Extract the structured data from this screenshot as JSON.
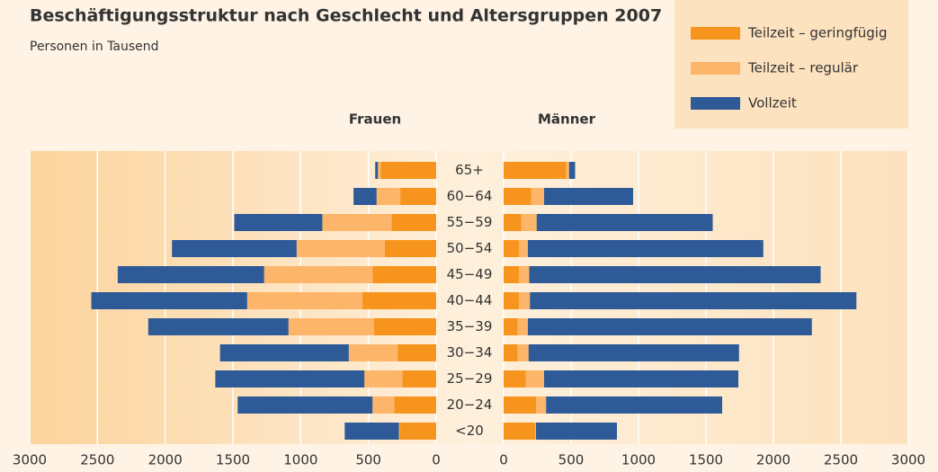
{
  "title": "Beschäftigungsstruktur nach Geschlecht und Altersgruppen 2007",
  "subtitle": "Personen in Tausend",
  "chart_data": [
    {
      "type": "bar",
      "title": "Frauen",
      "categories": [
        "65+",
        "60−64",
        "55−59",
        "50−54",
        "45−49",
        "40−44",
        "35−39",
        "30−34",
        "25−29",
        "20−24",
        "<20"
      ],
      "series": [
        {
          "name": "Teilzeit – geringfügig",
          "color": "#f7941d",
          "values": [
            410,
            265,
            330,
            380,
            470,
            545,
            460,
            285,
            250,
            310,
            270
          ]
        },
        {
          "name": "Teilzeit – regulär",
          "color": "#fdb56a",
          "values": [
            20,
            175,
            510,
            650,
            800,
            850,
            630,
            360,
            280,
            160,
            5
          ]
        },
        {
          "name": "Vollzeit",
          "color": "#2e5a97",
          "values": [
            20,
            170,
            650,
            920,
            1080,
            1150,
            1035,
            950,
            1100,
            995,
            400
          ]
        }
      ],
      "xlim": [
        3000,
        0
      ],
      "xticks": [
        3000,
        2500,
        2000,
        1500,
        1000,
        500,
        0
      ],
      "grid": true
    },
    {
      "type": "bar",
      "title": "Männer",
      "series": [
        {
          "name": "Teilzeit – geringfügig",
          "color": "#f7941d",
          "values": [
            465,
            205,
            130,
            115,
            115,
            115,
            105,
            105,
            165,
            240,
            235
          ]
        },
        {
          "name": "Teilzeit – regulär",
          "color": "#fdb56a",
          "values": [
            20,
            95,
            115,
            65,
            75,
            80,
            75,
            80,
            135,
            75,
            5
          ]
        },
        {
          "name": "Vollzeit",
          "color": "#2e5a97",
          "values": [
            45,
            660,
            1305,
            1745,
            2160,
            2420,
            2105,
            1560,
            1440,
            1305,
            600
          ]
        }
      ],
      "xlim": [
        0,
        3000
      ],
      "xticks": [
        0,
        500,
        1000,
        1500,
        2000,
        2500,
        3000
      ],
      "grid": true
    }
  ]
}
